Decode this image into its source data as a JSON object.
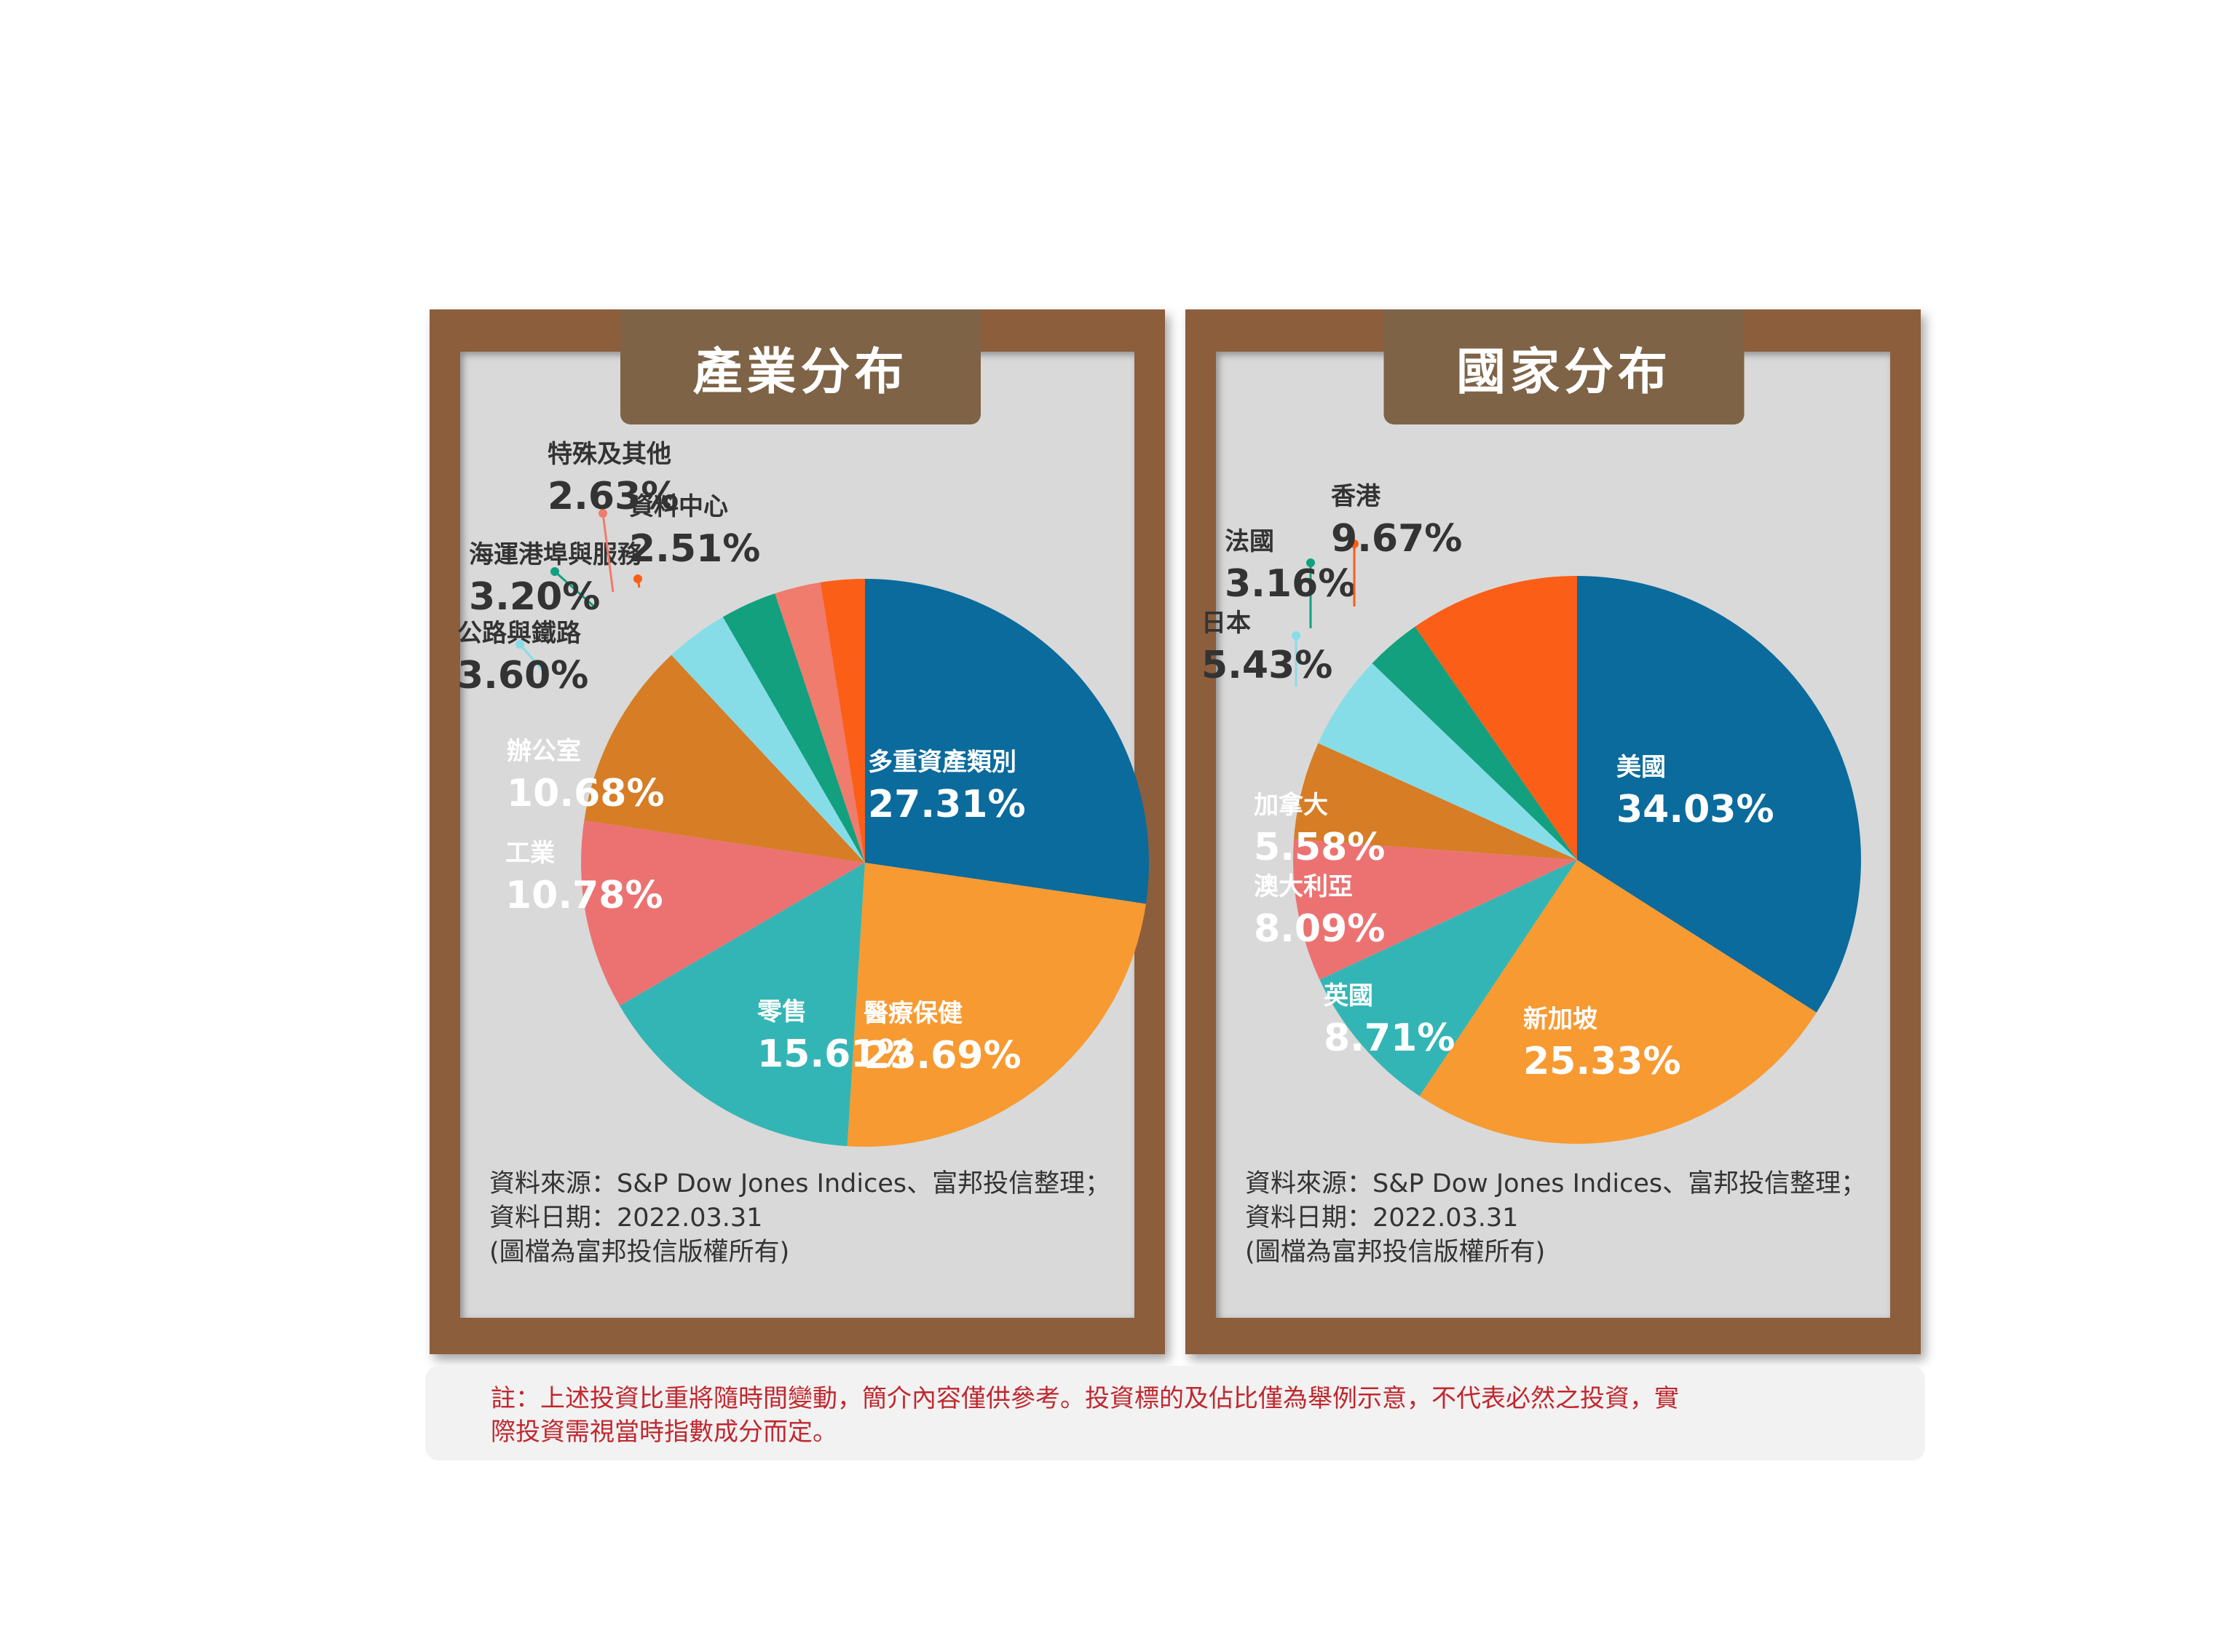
{
  "colors": {
    "frame": "#8c5e3c",
    "panel": "#d9d9d9",
    "tab": "#7e6347",
    "note_text": "#c0282f"
  },
  "left": {
    "title": "產業分布",
    "source_line1": "資料來源：S&P Dow Jones Indices、富邦投信整理；",
    "source_line2": "資料日期：2022.03.31",
    "source_line3": "(圖檔為富邦投信版權所有)"
  },
  "right": {
    "title": "國家分布",
    "source_line1": "資料來源：S&P Dow Jones Indices、富邦投信整理；",
    "source_line2": "資料日期：2022.03.31",
    "source_line3": "(圖檔為富邦投信版權所有)"
  },
  "note": {
    "line1": "註：上述投資比重將隨時間變動，簡介內容僅供參考。投資標的及佔比僅為舉例示意，不代表必然之投資，實",
    "line2": "際投資需視當時指數成分而定。"
  },
  "chart_data": [
    {
      "type": "pie",
      "title": "產業分布",
      "slices": [
        {
          "label": "多重資產類別",
          "value": 27.31,
          "text": "27.31%",
          "color": "#0a6b9c"
        },
        {
          "label": "醫療保健",
          "value": 23.69,
          "text": "23.69%",
          "color": "#f79a32"
        },
        {
          "label": "零售",
          "value": 15.61,
          "text": "15.61%",
          "color": "#34b5b5"
        },
        {
          "label": "工業",
          "value": 10.78,
          "text": "10.78%",
          "color": "#ec7272"
        },
        {
          "label": "辦公室",
          "value": 10.68,
          "text": "10.68%",
          "color": "#d67d26"
        },
        {
          "label": "公路與鐵路",
          "value": 3.6,
          "text": "3.60%",
          "color": "#86dde8"
        },
        {
          "label": "海運港埠與服務",
          "value": 3.2,
          "text": "3.20%",
          "color": "#12a07f"
        },
        {
          "label": "特殊及其他",
          "value": 2.63,
          "text": "2.63%",
          "color": "#ef7c6c"
        },
        {
          "label": "資料中心",
          "value": 2.51,
          "text": "2.51%",
          "color": "#fb5e17"
        }
      ]
    },
    {
      "type": "pie",
      "title": "國家分布",
      "slices": [
        {
          "label": "美國",
          "value": 34.03,
          "text": "34.03%",
          "color": "#0a6b9c"
        },
        {
          "label": "新加坡",
          "value": 25.33,
          "text": "25.33%",
          "color": "#f79a32"
        },
        {
          "label": "英國",
          "value": 8.71,
          "text": "8.71%",
          "color": "#34b5b5"
        },
        {
          "label": "澳大利亞",
          "value": 8.09,
          "text": "8.09%",
          "color": "#ec7272"
        },
        {
          "label": "加拿大",
          "value": 5.58,
          "text": "5.58%",
          "color": "#d67d26"
        },
        {
          "label": "日本",
          "value": 5.43,
          "text": "5.43%",
          "color": "#86dde8"
        },
        {
          "label": "法國",
          "value": 3.16,
          "text": "3.16%",
          "color": "#12a07f"
        },
        {
          "label": "香港",
          "value": 9.67,
          "text": "9.67%",
          "color": "#fb5e17"
        }
      ]
    }
  ]
}
